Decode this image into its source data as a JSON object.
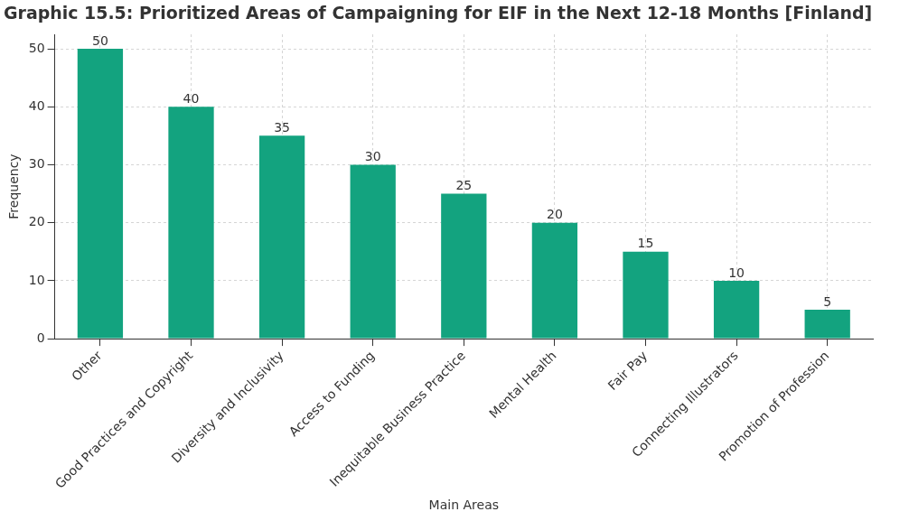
{
  "chart_data": {
    "type": "bar",
    "title": "Graphic 15.5: Prioritized Areas of Campaigning for EIF in the Next 12-18 Months [Finland]",
    "xlabel": "Main Areas",
    "ylabel": "Frequency",
    "categories": [
      "Other",
      "Good Practices and Copyright",
      "Diversity and Inclusivity",
      "Access to Funding",
      "Inequitable Business Practice",
      "Mental Health",
      "Fair Pay",
      "Connecting Illustrators",
      "Promotion of Profession"
    ],
    "values": [
      50,
      40,
      35,
      30,
      25,
      20,
      15,
      10,
      5
    ],
    "color": "#13a37f",
    "ylim": [
      0,
      52.5
    ],
    "yticks": [
      0,
      10,
      20,
      30,
      40,
      50
    ],
    "grid": true,
    "data_labels": true
  }
}
